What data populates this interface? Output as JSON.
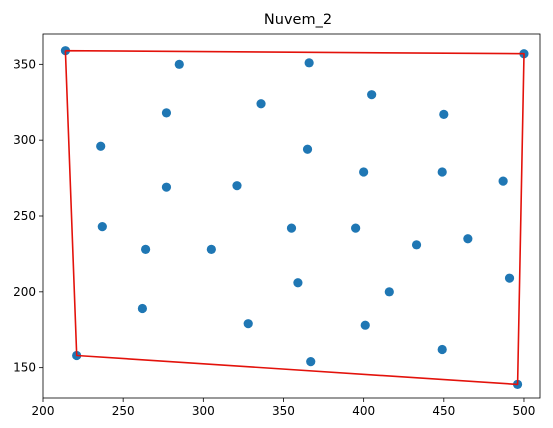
{
  "chart_data": {
    "type": "scatter",
    "title": "Nuvem_2",
    "xlabel": "",
    "ylabel": "",
    "xlim": [
      200,
      510
    ],
    "ylim": [
      130,
      370
    ],
    "xticks": [
      200,
      250,
      300,
      350,
      400,
      450,
      500
    ],
    "yticks": [
      150,
      200,
      250,
      300,
      350
    ],
    "grid": false,
    "points_color": "#1f77b4",
    "hull_color": "#e3120b",
    "points": [
      {
        "x": 214,
        "y": 359
      },
      {
        "x": 285,
        "y": 350
      },
      {
        "x": 366,
        "y": 351
      },
      {
        "x": 500,
        "y": 357
      },
      {
        "x": 405,
        "y": 330
      },
      {
        "x": 277,
        "y": 318
      },
      {
        "x": 336,
        "y": 324
      },
      {
        "x": 450,
        "y": 317
      },
      {
        "x": 236,
        "y": 296
      },
      {
        "x": 365,
        "y": 294
      },
      {
        "x": 277,
        "y": 269
      },
      {
        "x": 321,
        "y": 270
      },
      {
        "x": 400,
        "y": 279
      },
      {
        "x": 449,
        "y": 279
      },
      {
        "x": 487,
        "y": 273
      },
      {
        "x": 237,
        "y": 243
      },
      {
        "x": 355,
        "y": 242
      },
      {
        "x": 395,
        "y": 242
      },
      {
        "x": 264,
        "y": 228
      },
      {
        "x": 305,
        "y": 228
      },
      {
        "x": 433,
        "y": 231
      },
      {
        "x": 465,
        "y": 235
      },
      {
        "x": 359,
        "y": 206
      },
      {
        "x": 416,
        "y": 200
      },
      {
        "x": 491,
        "y": 209
      },
      {
        "x": 262,
        "y": 189
      },
      {
        "x": 328,
        "y": 179
      },
      {
        "x": 401,
        "y": 178
      },
      {
        "x": 449,
        "y": 162
      },
      {
        "x": 221,
        "y": 158
      },
      {
        "x": 367,
        "y": 154
      },
      {
        "x": 496,
        "y": 139
      }
    ],
    "hull": [
      {
        "x": 214,
        "y": 359
      },
      {
        "x": 500,
        "y": 357
      },
      {
        "x": 496,
        "y": 139
      },
      {
        "x": 221,
        "y": 158
      },
      {
        "x": 214,
        "y": 359
      }
    ]
  }
}
